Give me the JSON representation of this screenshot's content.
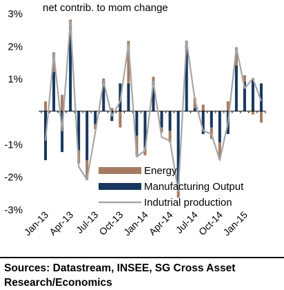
{
  "chart_data": {
    "type": "bar",
    "subtitle": "net contrib. to mom change",
    "ylim": [
      -3,
      3
    ],
    "yticks": [
      3,
      2,
      1,
      -1,
      -2,
      -3
    ],
    "ytick_labels": [
      "3%",
      "2%",
      "1%",
      "-1%",
      "-2%",
      "-3%"
    ],
    "categories": [
      "Jan-13",
      "Feb-13",
      "Mar-13",
      "Apr-13",
      "May-13",
      "Jun-13",
      "Jul-13",
      "Aug-13",
      "Sep-13",
      "Oct-13",
      "Nov-13",
      "Dec-13",
      "Jan-14",
      "Feb-14",
      "Mar-14",
      "Apr-14",
      "May-14",
      "Jun-14",
      "Jul-14",
      "Aug-14",
      "Sep-14",
      "Oct-14",
      "Nov-14",
      "Dec-14",
      "Jan-15",
      "Feb-15",
      "Mar-15"
    ],
    "xtick_labels": [
      "Jan-13",
      "Apr-13",
      "Jul-13",
      "Oct-13",
      "Jan-14",
      "Apr-14",
      "Jul-14",
      "Oct-14",
      "Jan-15"
    ],
    "xtick_indices": [
      0,
      3,
      6,
      9,
      12,
      15,
      18,
      21,
      24
    ],
    "series": [
      {
        "name": "Energy",
        "kind": "stacked-bar",
        "color": "#a57c63",
        "values": [
          0.3,
          0.6,
          0.5,
          0.2,
          -0.4,
          -0.6,
          -0.15,
          0.1,
          0.1,
          -0.5,
          1.3,
          -0.6,
          -0.25,
          0.2,
          -0.15,
          -0.35,
          -0.35,
          0.15,
          0.3,
          0.2,
          -0.35,
          -0.5,
          0.3,
          0.55,
          0.2,
          -0.1,
          -0.35
        ]
      },
      {
        "name": "Manufacturing Output",
        "kind": "stacked-bar",
        "color": "#17375e",
        "values": [
          -1.5,
          1.2,
          -1.25,
          2.6,
          -1.2,
          -1.5,
          -0.4,
          0.9,
          -0.3,
          0.85,
          0.85,
          -0.75,
          -1.1,
          0.85,
          -0.5,
          -0.6,
          -2.3,
          2.0,
          0.1,
          -0.7,
          -0.5,
          -0.95,
          -0.7,
          1.4,
          0.9,
          1.0,
          0.85
        ]
      },
      {
        "name": "Indutrial production",
        "kind": "line",
        "color": "#a6a6a6",
        "values": [
          -0.9,
          1.75,
          -0.6,
          2.75,
          -1.7,
          -2.1,
          -0.65,
          0.9,
          -0.15,
          0.3,
          2.05,
          -1.4,
          -1.2,
          0.9,
          -0.8,
          -0.9,
          -2.45,
          2.15,
          0.35,
          -0.6,
          -0.7,
          -1.5,
          -0.35,
          1.95,
          0.7,
          1.0,
          0.3
        ]
      }
    ]
  },
  "sources": {
    "line1": "Sources: Datastream, INSEE, SG Cross Asset",
    "line2": "Research/Economics"
  }
}
